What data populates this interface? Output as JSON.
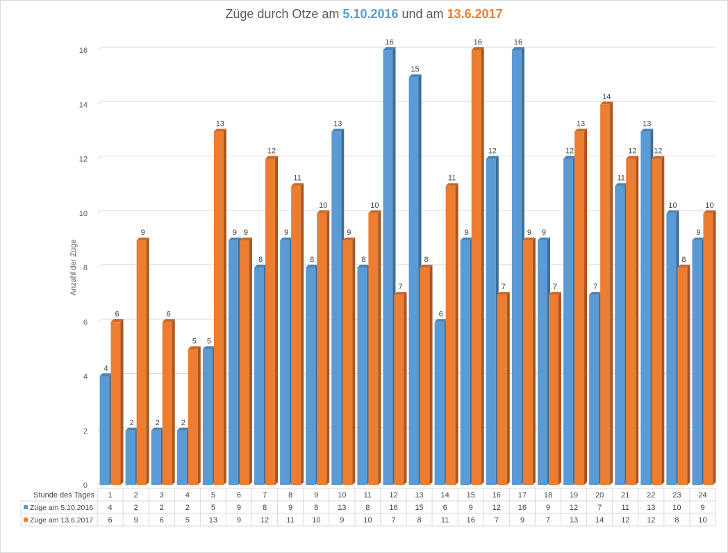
{
  "chart_data": {
    "type": "bar",
    "title": {
      "prefix": "Züge durch Otze am",
      "date1": "5.10.2016",
      "middle": "und am",
      "date2": "13.6.2017"
    },
    "ylabel": "Anzahl der Züge",
    "xlabel": "Stunde des Tages",
    "ylim": [
      0,
      16
    ],
    "yticks": [
      0,
      2,
      4,
      6,
      8,
      10,
      12,
      14,
      16
    ],
    "grid": true,
    "legend": "data-table",
    "categories": [
      "1",
      "2",
      "3",
      "4",
      "5",
      "6",
      "7",
      "8",
      "9",
      "10",
      "11",
      "12",
      "13",
      "14",
      "15",
      "16",
      "17",
      "18",
      "19",
      "20",
      "21",
      "22",
      "23",
      "24"
    ],
    "series": [
      {
        "name": "Züge am 5.10.2016",
        "color": "#5b9bd5",
        "values": [
          4,
          2,
          2,
          2,
          5,
          9,
          8,
          9,
          8,
          13,
          8,
          16,
          15,
          6,
          9,
          12,
          16,
          9,
          12,
          7,
          11,
          13,
          10,
          9
        ]
      },
      {
        "name": "Züge am 13.6.2017",
        "color": "#ed7d31",
        "values": [
          6,
          9,
          6,
          5,
          13,
          9,
          12,
          11,
          10,
          9,
          10,
          7,
          8,
          11,
          16,
          7,
          9,
          7,
          13,
          14,
          12,
          12,
          8,
          10
        ]
      }
    ]
  }
}
